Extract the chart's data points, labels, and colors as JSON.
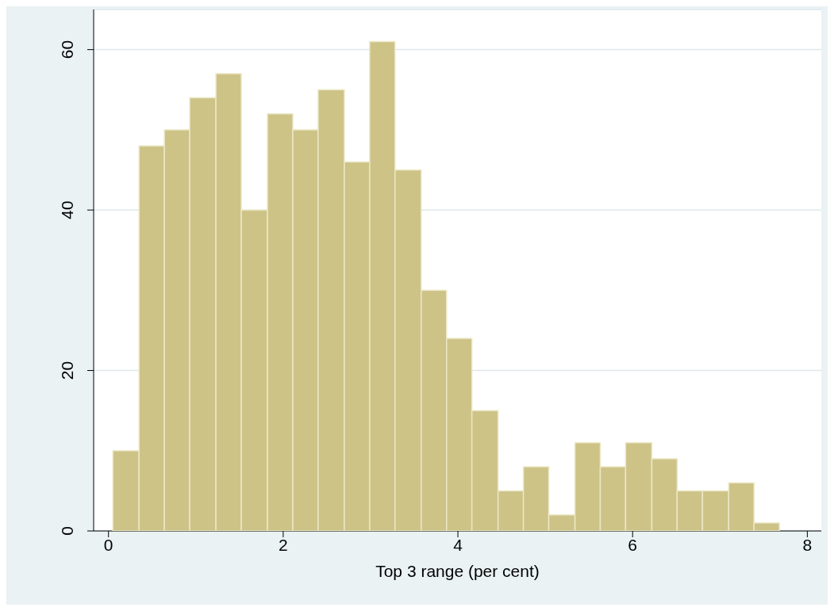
{
  "chart_data": {
    "type": "histogram",
    "xlabel": "Top 3 range (per cent)",
    "bins": [
      0.05,
      0.35,
      0.64,
      0.93,
      1.23,
      1.52,
      1.82,
      2.11,
      2.4,
      2.7,
      2.99,
      3.28,
      3.58,
      3.87,
      4.16,
      4.46,
      4.75,
      5.04,
      5.34,
      5.63,
      5.92,
      6.22,
      6.51,
      6.8,
      7.1,
      7.39,
      7.68
    ],
    "values": [
      10,
      48,
      50,
      54,
      57,
      40,
      52,
      50,
      55,
      46,
      61,
      45,
      30,
      24,
      15,
      5,
      8,
      2,
      11,
      8,
      11,
      9,
      5,
      5,
      6,
      1
    ],
    "color": "#cdc387",
    "xlim": [
      -0.17,
      8.16
    ],
    "xticks": [
      0,
      2,
      4,
      6,
      8
    ],
    "ylim": [
      0,
      65
    ],
    "yticks": [
      0,
      20,
      40,
      60
    ],
    "grid": "y"
  }
}
